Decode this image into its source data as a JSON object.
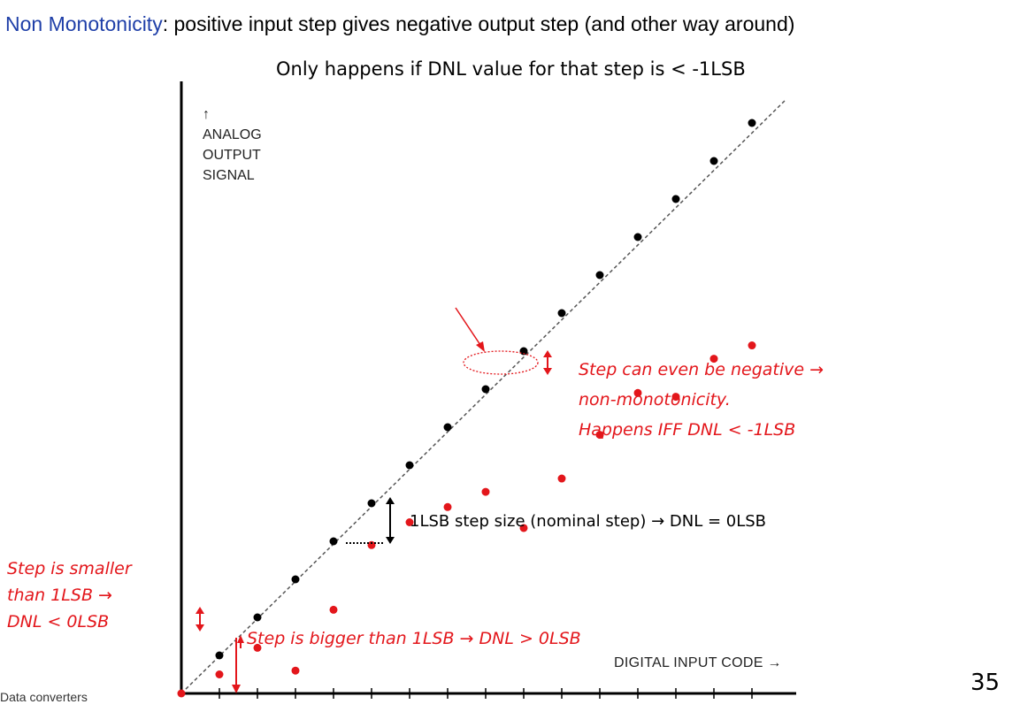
{
  "slide": {
    "title_keyword": "Non Monotonicity",
    "title_rest": ": positive input step gives negative output step (and other way around)",
    "subtitle": "Only happens if DNL value for that step is < -1LSB",
    "footer": "Data converters",
    "page_number": "35"
  },
  "diagram": {
    "y_axis_label": [
      "↑",
      "ANALOG",
      "OUTPUT",
      "SIGNAL"
    ],
    "x_axis_label": "DIGITAL INPUT CODE →",
    "annotations": {
      "left": [
        "Step is smaller",
        "than 1LSB →",
        "DNL < 0LSB"
      ],
      "bottom": "Step is bigger than 1LSB → DNL > 0LSB",
      "negative": [
        "Step can even be negative →",
        "non-monotonicity.",
        "Happens IFF DNL < -1LSB"
      ],
      "nominal": "1LSB step size (nominal step) → DNL = 0LSB"
    },
    "colors": {
      "ideal": "#000000",
      "actual": "#e3161b",
      "accent": "#1f3fa8"
    },
    "ideal_codes": [
      0,
      1,
      2,
      3,
      4,
      5,
      6,
      7,
      8,
      9,
      10,
      11,
      12,
      13,
      14
    ],
    "actual_output_lsb": [
      0,
      0.5,
      1.2,
      0.6,
      2.2,
      3.9,
      4.5,
      4.9,
      5.3,
      4.35,
      5.65,
      6.8,
      7.9,
      7.8,
      8.8,
      9.15
    ]
  }
}
